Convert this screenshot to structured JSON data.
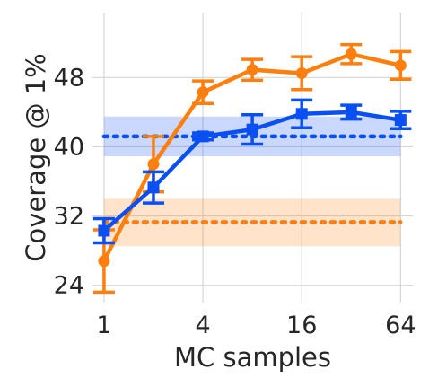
{
  "chart_data": {
    "type": "line",
    "xlabel": "MC samples",
    "ylabel": "Coverage @ 1%",
    "x_scale": "log2",
    "xlim": [
      0.85,
      76
    ],
    "ylim": [
      22,
      55.5
    ],
    "x_ticks": [
      1,
      4,
      16,
      64
    ],
    "x_tick_labels": [
      "1",
      "4",
      "16",
      "64"
    ],
    "y_ticks": [
      24,
      32,
      40,
      48
    ],
    "y_tick_labels": [
      "24",
      "32",
      "40",
      "48"
    ],
    "grid": true,
    "legend": "none",
    "x": [
      1,
      2,
      4,
      8,
      16,
      32,
      64
    ],
    "series": [
      {
        "color": "#ff7f0e",
        "marker": "circle",
        "values": [
          26.8,
          38.0,
          46.3,
          48.9,
          48.5,
          50.7,
          49.4
        ],
        "err": [
          3.6,
          3.2,
          1.3,
          1.2,
          1.9,
          1.1,
          1.6
        ],
        "baseline": {
          "mean": 31.3,
          "band": [
            28.5,
            34.0
          ]
        }
      },
      {
        "color": "#0a4ff2",
        "marker": "square",
        "values": [
          30.3,
          35.3,
          41.2,
          42.0,
          43.8,
          44.0,
          43.1
        ],
        "err": [
          1.4,
          1.8,
          0.4,
          1.7,
          1.6,
          0.8,
          1.0
        ],
        "baseline": {
          "mean": 41.2,
          "band": [
            38.9,
            43.5
          ]
        }
      }
    ]
  }
}
